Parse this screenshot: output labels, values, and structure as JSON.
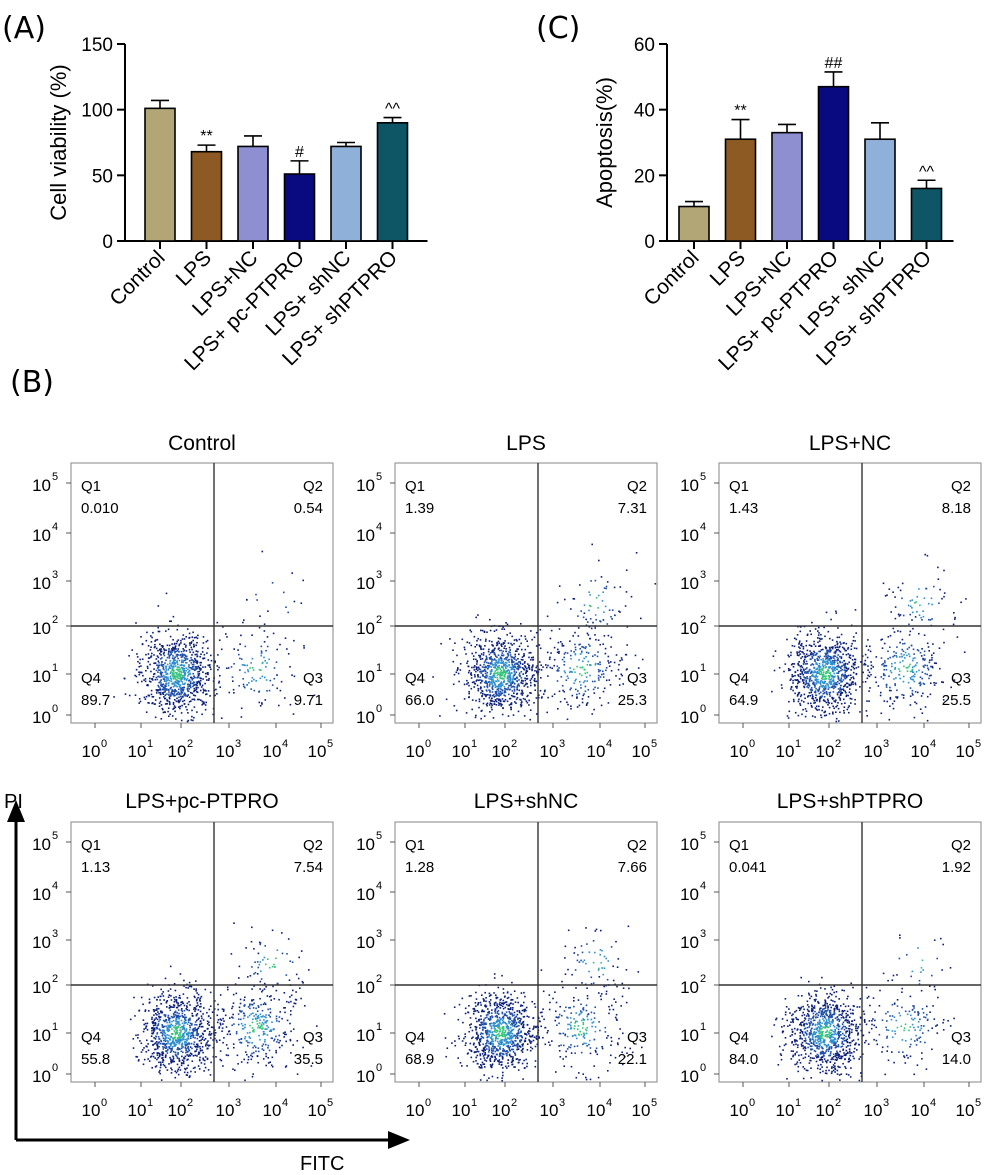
{
  "chart_data": [
    {
      "type": "bar",
      "panel": "(A)",
      "title": "",
      "xlabel": "",
      "ylabel": "Cell viability (%)",
      "ylim": [
        0,
        150
      ],
      "yticks": [
        "0",
        "50",
        "100",
        "150"
      ],
      "categories": [
        "Control",
        "LPS",
        "LPS+NC",
        "LPS+ pc-PTPRO",
        "LPS+ shNC",
        "LPS+ shPTPRO"
      ],
      "values": [
        101,
        68,
        72,
        51,
        72,
        90
      ],
      "errors": [
        6,
        5,
        8,
        10,
        3,
        4
      ],
      "colors": [
        "#b2a677",
        "#8c5a22",
        "#8d8fd1",
        "#0a0a80",
        "#8fb0d8",
        "#0e5566"
      ],
      "significance": [
        "",
        "**",
        "",
        "#",
        "",
        "^^"
      ]
    },
    {
      "type": "bar",
      "panel": "(C)",
      "title": "",
      "xlabel": "",
      "ylabel": "Apoptosis(%)",
      "ylim": [
        0,
        60
      ],
      "yticks": [
        "0",
        "20",
        "40",
        "60"
      ],
      "categories": [
        "Control",
        "LPS",
        "LPS+NC",
        "LPS+ pc-PTPRO",
        "LPS+ shNC",
        "LPS+ shPTPRO"
      ],
      "values": [
        10.5,
        31,
        33,
        47,
        31,
        16
      ],
      "errors": [
        1.5,
        6,
        2.5,
        4.5,
        5,
        2.5
      ],
      "colors": [
        "#b2a677",
        "#8c5a22",
        "#8d8fd1",
        "#0a0a80",
        "#8fb0d8",
        "#0e5566"
      ],
      "significance": [
        "",
        "**",
        "",
        "##",
        "",
        "^^"
      ]
    },
    {
      "type": "scatter",
      "panel": "(B)",
      "xlabel": "FITC",
      "ylabel": "PI",
      "scale": "log",
      "tick_bases": [
        "10",
        "10",
        "10",
        "10",
        "10",
        "10"
      ],
      "tick_exponents": [
        "0",
        "1",
        "2",
        "3",
        "4",
        "5"
      ],
      "quadrant_names": [
        "Q1",
        "Q2",
        "Q3",
        "Q4"
      ],
      "plots": [
        {
          "title": "Control",
          "q1": "0.010",
          "q2": "0.54",
          "q3": "9.71",
          "q4": "89.7"
        },
        {
          "title": "LPS",
          "q1": "1.39",
          "q2": "7.31",
          "q3": "25.3",
          "q4": "66.0"
        },
        {
          "title": "LPS+NC",
          "q1": "1.43",
          "q2": "8.18",
          "q3": "25.5",
          "q4": "64.9"
        },
        {
          "title": "LPS+pc-PTPRO",
          "q1": "1.13",
          "q2": "7.54",
          "q3": "35.5",
          "q4": "55.8"
        },
        {
          "title": "LPS+shNC",
          "q1": "1.28",
          "q2": "7.66",
          "q3": "22.1",
          "q4": "68.9"
        },
        {
          "title": "LPS+shPTPRO",
          "q1": "0.041",
          "q2": "1.92",
          "q3": "14.0",
          "q4": "84.0"
        }
      ]
    }
  ]
}
